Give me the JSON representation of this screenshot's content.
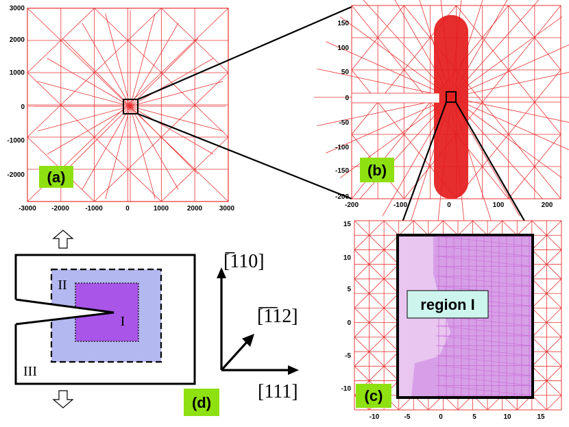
{
  "panels": {
    "a": {
      "label": "(a)",
      "x_ticks": [
        "-3000",
        "-2000",
        "-1000",
        "0",
        "1000",
        "2000",
        "3000"
      ],
      "y_ticks": [
        "3000",
        "2000",
        "1000",
        "0",
        "-1000",
        "-2000"
      ]
    },
    "b": {
      "label": "(b)",
      "x_ticks": [
        "-200",
        "-100",
        "0",
        "100",
        "200"
      ],
      "y_ticks": [
        "150",
        "100",
        "50",
        "0",
        "-50",
        "-100",
        "-150",
        "-200"
      ]
    },
    "c": {
      "label": "(c)",
      "region_label": "region I",
      "x_ticks": [
        "-10",
        "-5",
        "0",
        "5",
        "10",
        "15"
      ],
      "y_ticks": [
        "15",
        "10",
        "5",
        "0",
        "-5",
        "-10"
      ]
    },
    "d": {
      "label": "(d)",
      "region_labels": [
        "I",
        "II",
        "III"
      ],
      "directions": {
        "up": "[̅110]",
        "diag": "[̅1̅12]",
        "right": "[111]"
      }
    }
  },
  "colors": {
    "mesh": "#e83030",
    "badge": "#8ee010",
    "region_I": "#a855e8",
    "region_II": "#b3b8f0",
    "region_c": "#e8c6f0",
    "callout": "#cdf5ee"
  }
}
